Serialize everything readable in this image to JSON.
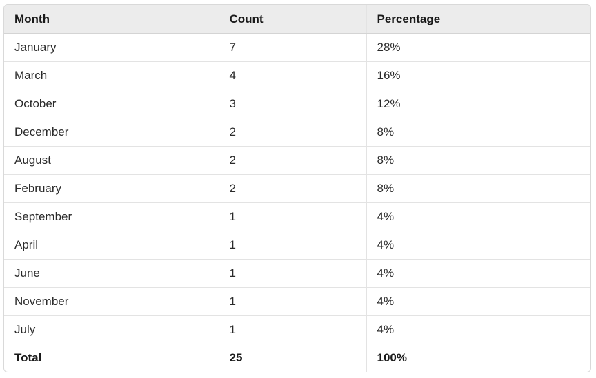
{
  "table": {
    "headers": [
      "Month",
      "Count",
      "Percentage"
    ],
    "rows": [
      [
        "January",
        "7",
        "28%"
      ],
      [
        "March",
        "4",
        "16%"
      ],
      [
        "October",
        "3",
        "12%"
      ],
      [
        "December",
        "2",
        "8%"
      ],
      [
        "August",
        "2",
        "8%"
      ],
      [
        "February",
        "2",
        "8%"
      ],
      [
        "September",
        "1",
        "4%"
      ],
      [
        "April",
        "1",
        "4%"
      ],
      [
        "June",
        "1",
        "4%"
      ],
      [
        "November",
        "1",
        "4%"
      ],
      [
        "July",
        "1",
        "4%"
      ]
    ],
    "total": [
      "Total",
      "25",
      "100%"
    ]
  }
}
